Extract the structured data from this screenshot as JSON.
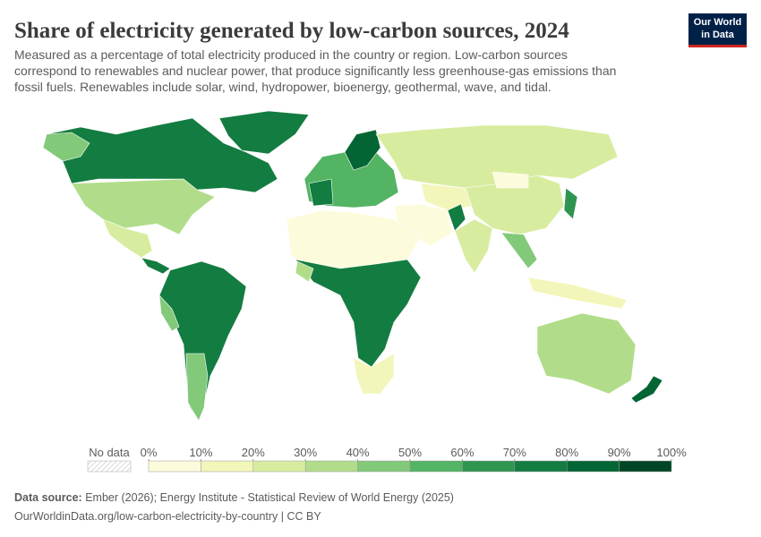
{
  "header": {
    "title": "Share of electricity generated by low-carbon sources, 2024",
    "subtitle_lines": [
      "Measured as a percentage of total electricity produced in the country or region. Low-carbon sources",
      "correspond to renewables and nuclear power, that produce significantly less greenhouse-gas emissions than",
      "fossil fuels. Renewables include solar, wind, hydropower, bioenergy, geothermal, wave, and tidal."
    ],
    "logo": [
      "Our World",
      "in Data"
    ]
  },
  "legend": {
    "no_data_label": "No data",
    "ticks": [
      {
        "value": 0,
        "label": "0%"
      },
      {
        "value": 10,
        "label": "10%"
      },
      {
        "value": 20,
        "label": "20%"
      },
      {
        "value": 30,
        "label": "30%"
      },
      {
        "value": 40,
        "label": "40%"
      },
      {
        "value": 50,
        "label": "50%"
      },
      {
        "value": 60,
        "label": "60%"
      },
      {
        "value": 70,
        "label": "70%"
      },
      {
        "value": 80,
        "label": "80%"
      },
      {
        "value": 90,
        "label": "90%"
      },
      {
        "value": 100,
        "label": "100%"
      }
    ],
    "colors": [
      "#fcfbdc",
      "#f3f6ba",
      "#d8ec9f",
      "#b1dd8b",
      "#82c97a",
      "#53b463",
      "#2e9550",
      "#137c41",
      "#036534",
      "#004526"
    ]
  },
  "footer": {
    "source_label": "Data source:",
    "source_text": "Ember (2026); Energy Institute - Statistical Review of World Energy (2025)",
    "url_line": "OurWorldinData.org/low-carbon-electricity-by-country | CC BY"
  }
}
